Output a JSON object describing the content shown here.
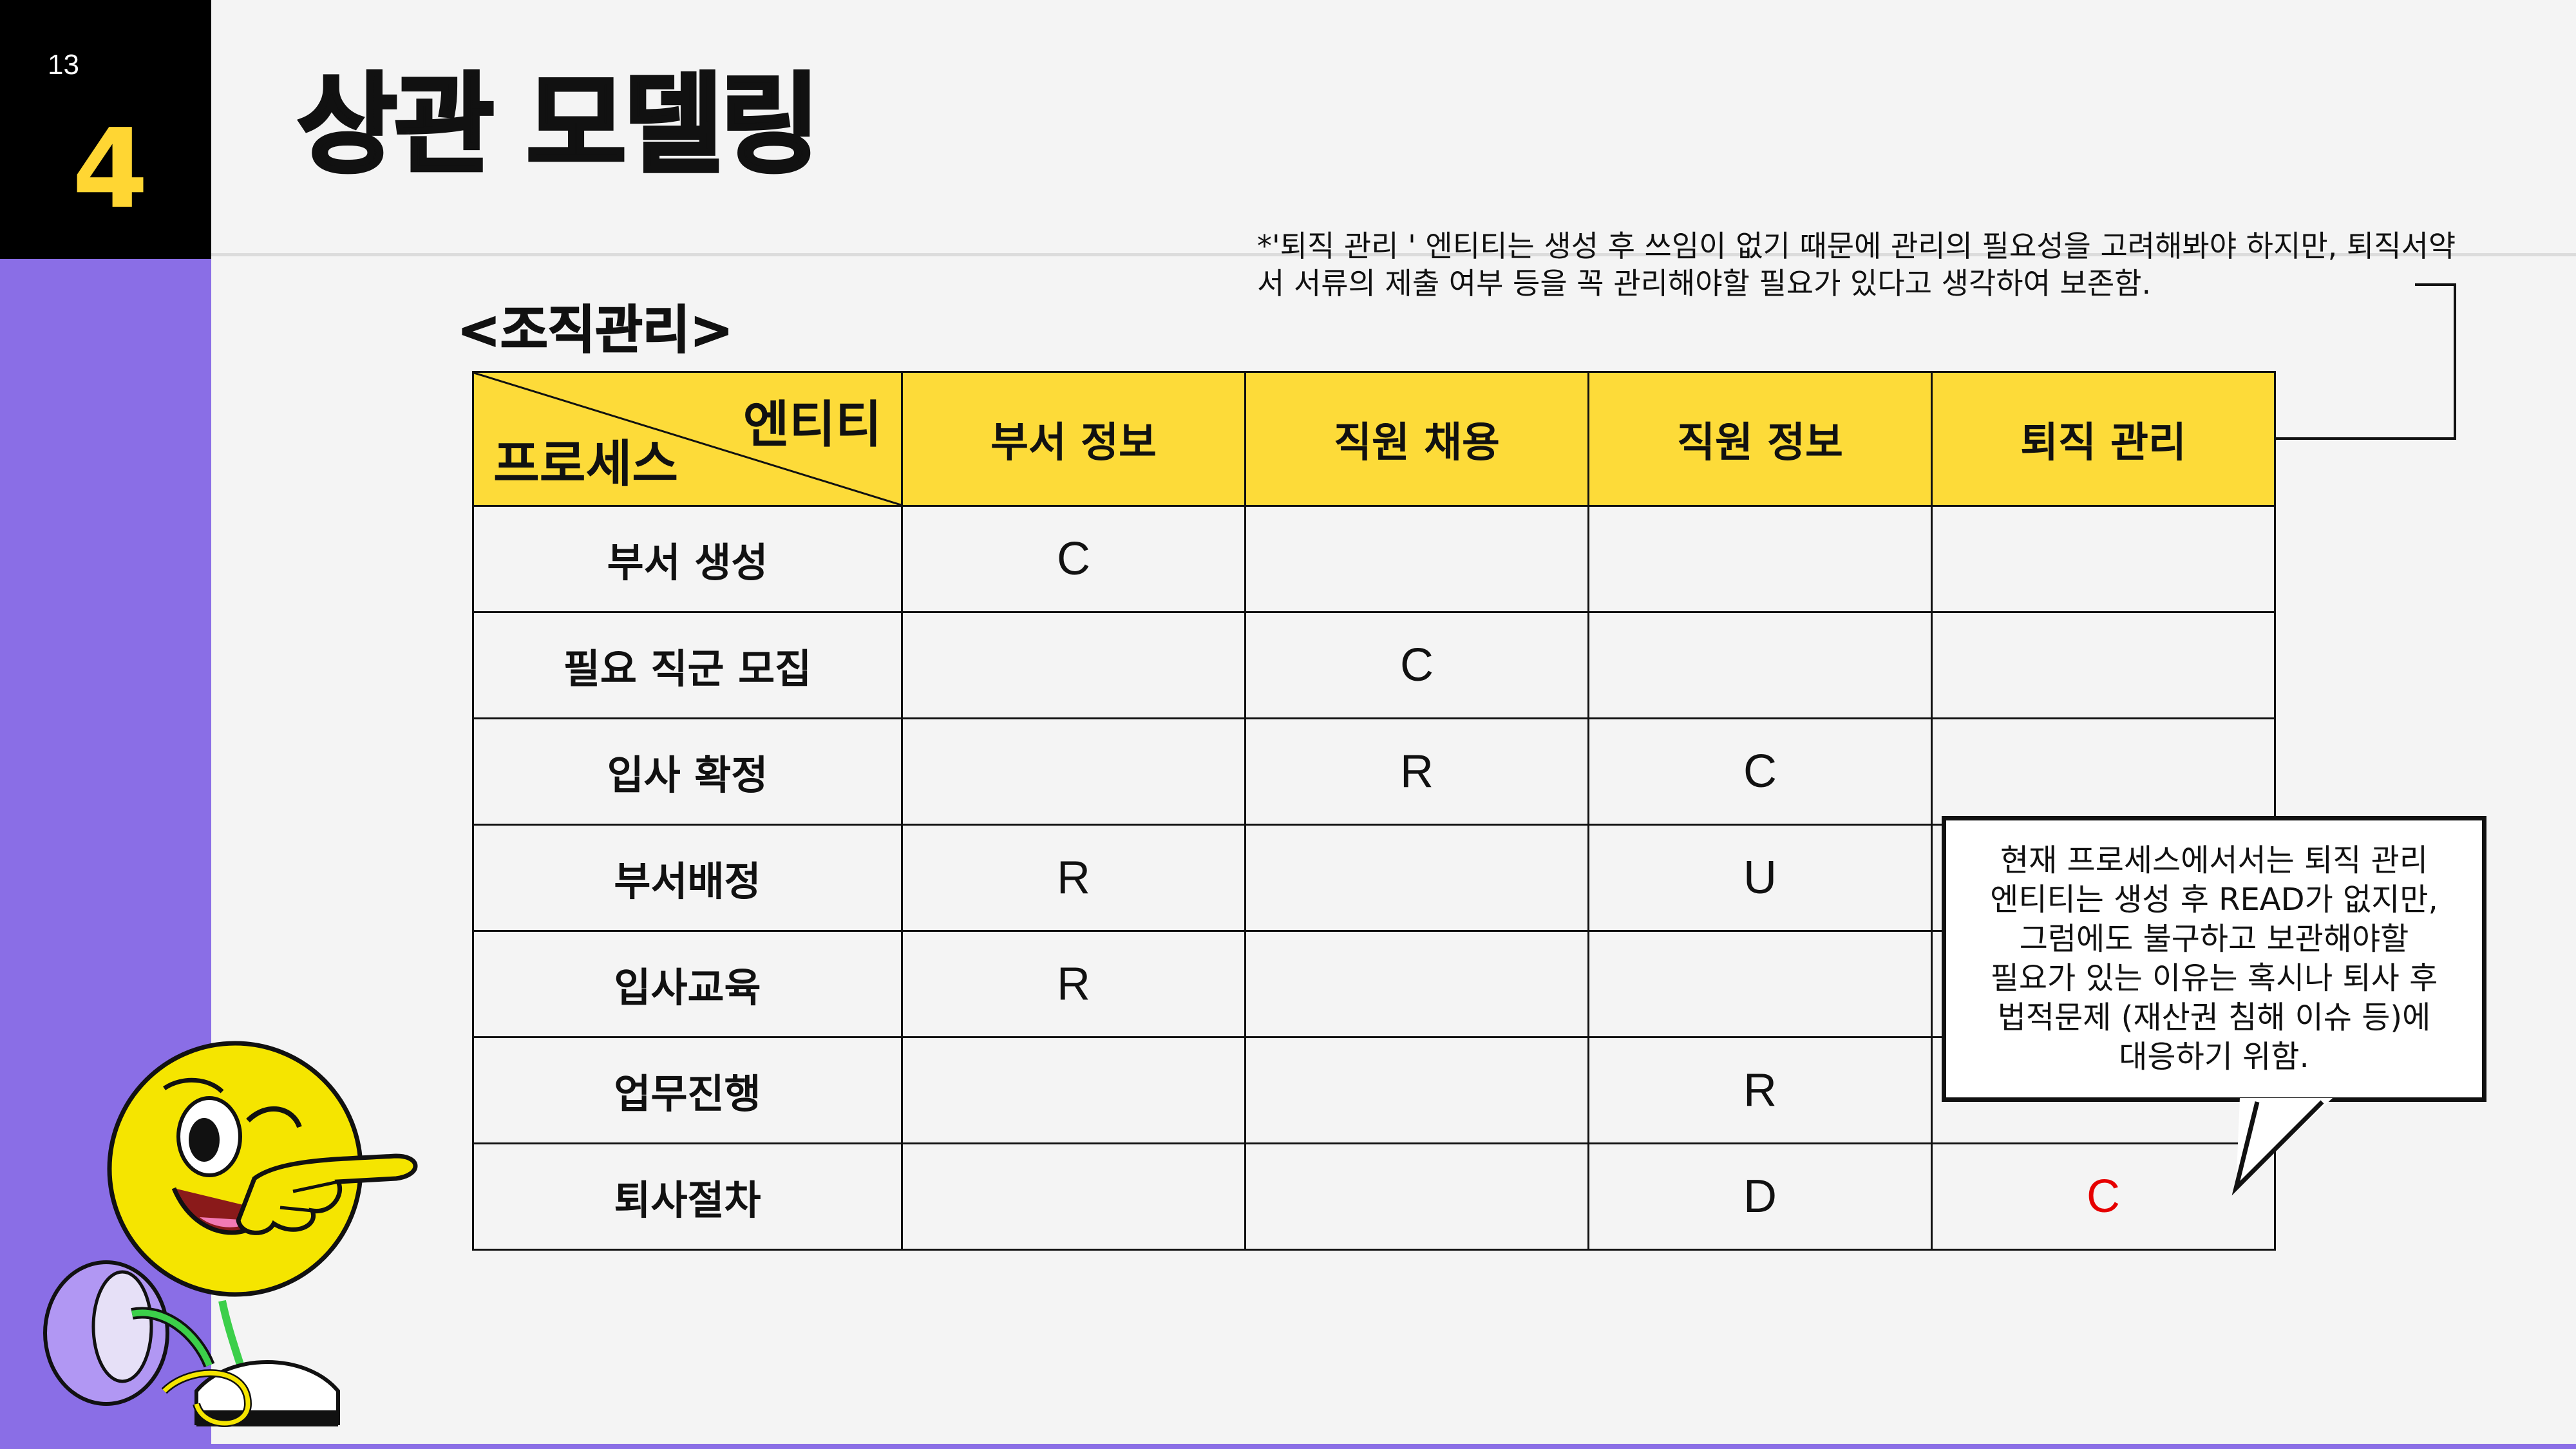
{
  "page": {
    "number": "13",
    "section": "4"
  },
  "title": "상관 모델링",
  "subtitle": "<조직관리>",
  "note": "*'퇴직 관리 ' 엔티티는 생성 후 쓰임이 없기 때문에 관리의 필요성을 고려해봐야 하지만, 퇴직서약서 서류의 제출 여부 등을 꼭 관리해야할 필요가 있다고 생각하여 보존함.",
  "table": {
    "corner_entity": "엔티티",
    "corner_process": "프로세스",
    "entities": [
      "부서 정보",
      "직원 채용",
      "직원 정보",
      "퇴직 관리"
    ],
    "rows": [
      {
        "process": "부서 생성",
        "cells": [
          "C",
          "",
          "",
          ""
        ]
      },
      {
        "process": "필요 직군 모집",
        "cells": [
          "",
          "C",
          "",
          ""
        ]
      },
      {
        "process": "입사 확정",
        "cells": [
          "",
          "R",
          "C",
          ""
        ]
      },
      {
        "process": "부서배정",
        "cells": [
          "R",
          "",
          "U",
          ""
        ]
      },
      {
        "process": "입사교육",
        "cells": [
          "R",
          "",
          "",
          ""
        ]
      },
      {
        "process": "업무진행",
        "cells": [
          "",
          "",
          "R",
          ""
        ]
      },
      {
        "process": "퇴사절차",
        "cells": [
          "",
          "",
          "D",
          "C"
        ]
      }
    ]
  },
  "callout": "현재 프로세스에서서는 퇴직 관리\n엔티티는 생성 후 READ가 없지만,\n그럼에도 불구하고 보관해야할\n필요가 있는 이유는 혹시나 퇴사 후\n법적문제 (재산권 침해 이슈 등)에\n대응하기 위함.",
  "colors": {
    "accent_yellow": "#fddb39",
    "accent_purple": "#8a6ee6",
    "highlight_red": "#e60000"
  },
  "icons": [
    "smiley-mascot-pointing",
    "note-arrow"
  ]
}
